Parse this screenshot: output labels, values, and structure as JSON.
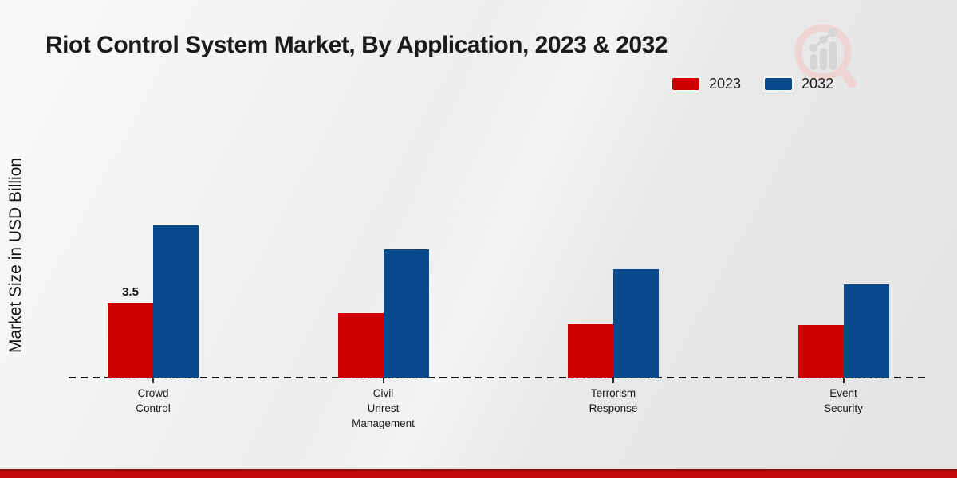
{
  "title": "Riot Control System Market, By Application, 2023 & 2032",
  "ylabel": "Market Size in USD Billion",
  "legend": [
    {
      "label": "2023",
      "color": "#cc0001"
    },
    {
      "label": "2032",
      "color": "#07498a"
    }
  ],
  "colors": {
    "series_2023": "#cc0001",
    "series_2032": "#07498a",
    "bottom_stripe": "#c00808",
    "background": "#ececec",
    "baseline": "#141414"
  },
  "watermark": "market-research-future-magnifier-chart-logo",
  "chart_data": {
    "type": "bar",
    "title": "Riot Control System Market, By Application, 2023 & 2032",
    "ylabel": "Market Size in USD Billion",
    "xlabel": "",
    "categories": [
      "Crowd Control",
      "Civil Unrest Management",
      "Terrorism Response",
      "Event Security"
    ],
    "series": [
      {
        "name": "2023",
        "color": "#cc0001",
        "values": [
          3.5,
          3.0,
          2.5,
          2.45
        ]
      },
      {
        "name": "2032",
        "color": "#07498a",
        "values": [
          7.1,
          6.0,
          5.05,
          4.35
        ]
      }
    ],
    "data_labels": [
      {
        "series": "2023",
        "category": "Crowd Control",
        "text": "3.5"
      }
    ],
    "ylim": [
      0,
      8
    ],
    "grid": false,
    "axis_style": "dashed-baseline-only",
    "legend_position": "top-right"
  }
}
